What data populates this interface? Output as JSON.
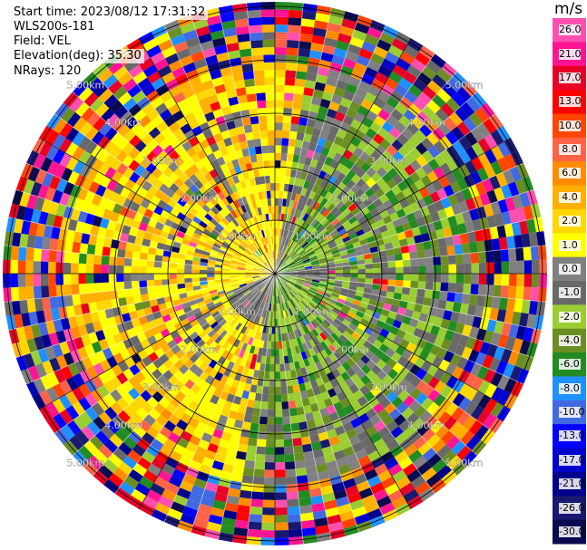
{
  "header": {
    "start_time": "Start time: 2023/08/12 17:31:32",
    "instrument": "WLS200s-181",
    "field": "Field: VEL",
    "elevation": "Elevation(deg): 35.30",
    "nrays": "NRays: 120"
  },
  "chart_data": {
    "type": "heatmap",
    "projection": "polar-ppi",
    "field": "VEL",
    "units": "m/s",
    "nrays": 120,
    "elevation_deg": 35.3,
    "range_ring_labels": [
      "1.00km",
      "2.00km",
      "3.00km",
      "4.00km",
      "5.00km"
    ],
    "colorbar": {
      "title": "m/s",
      "ticks": [
        "26.0",
        "21.0",
        "17.0",
        "13.0",
        "10.0",
        "8.0",
        "6.0",
        "4.0",
        "2.0",
        "1.0",
        "0.0",
        "-1.0",
        "-2.0",
        "-4.0",
        "-6.0",
        "-8.0",
        "-10.0",
        "-13.0",
        "-17.0",
        "-21.0",
        "-26.0",
        "-30.0"
      ],
      "colors": [
        "#ff4fb0",
        "#ff1493",
        "#e60026",
        "#ff0000",
        "#ff4500",
        "#ff6347",
        "#ff8c00",
        "#ffb000",
        "#ffd700",
        "#ffff00",
        "#808080",
        "#696969",
        "#9acd32",
        "#6b8e23",
        "#228b22",
        "#1e90ff",
        "#4169e1",
        "#0000ff",
        "#0000cd",
        "#00008b",
        "#191970",
        "#0a0a50"
      ]
    },
    "pattern_summary": {
      "inner_core_positive_sector": "north-west",
      "inner_core_negative_sector": "south-east",
      "outer_rings": "noisy mixed velocities"
    }
  }
}
